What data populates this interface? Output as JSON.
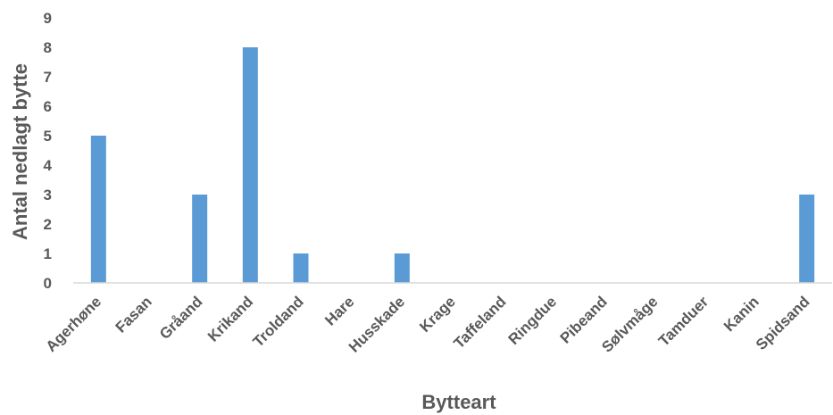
{
  "chart_data": {
    "type": "bar",
    "title": "",
    "xlabel": "Bytteart",
    "ylabel": "Antal nedlagt bytte",
    "categories": [
      "Agerhøne",
      "Fasan",
      "Gråand",
      "Krikand",
      "Troldand",
      "Hare",
      "Husskade",
      "Krage",
      "Taffeland",
      "Ringdue",
      "Pibeand",
      "Sølvmåge",
      "Tamduer",
      "Kanin",
      "Spidsand"
    ],
    "values": [
      5,
      0,
      3,
      8,
      1,
      0,
      1,
      0,
      0,
      0,
      0,
      0,
      0,
      0,
      3
    ],
    "ylim": [
      0,
      9
    ],
    "yticks": [
      0,
      1,
      2,
      3,
      4,
      5,
      6,
      7,
      8,
      9
    ],
    "grid": false,
    "legend": "none",
    "colors": {
      "bar": "#5B9BD5",
      "axis": "#D9D9D9",
      "text": "#595959"
    }
  }
}
